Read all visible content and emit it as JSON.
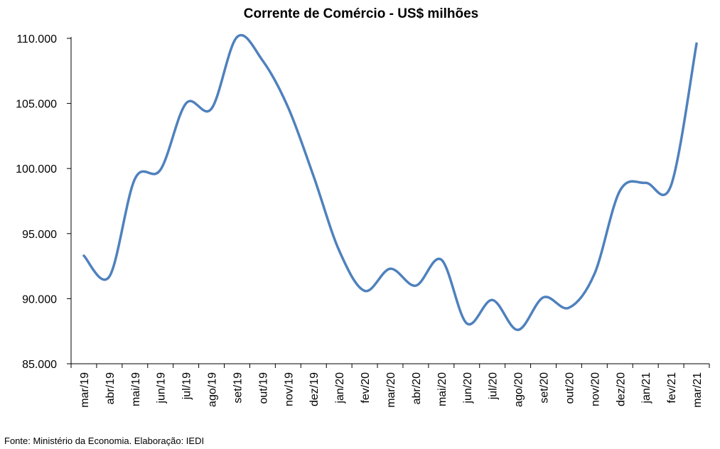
{
  "chart_data": {
    "type": "line",
    "title": "Corrente de Comércio - US$ milhões",
    "xlabel": "",
    "ylabel": "",
    "categories": [
      "mar/19",
      "abr/19",
      "mai/19",
      "jun/19",
      "jul/19",
      "ago/19",
      "set/19",
      "out/19",
      "nov/19",
      "dez/19",
      "jan/20",
      "fev/20",
      "mar/20",
      "abr/20",
      "mai/20",
      "jun/20",
      "jul/20",
      "ago/20",
      "set/20",
      "out/20",
      "nov/20",
      "dez/20",
      "jan/21",
      "fev/21",
      "mar/21"
    ],
    "series": [
      {
        "values": [
          93300,
          91700,
          99200,
          99900,
          105000,
          104600,
          110100,
          108300,
          104700,
          99400,
          93700,
          90600,
          92300,
          91000,
          93000,
          88100,
          89900,
          87600,
          90100,
          89300,
          91900,
          98300,
          98900,
          98700,
          109600
        ],
        "color": "#4F81BD"
      }
    ],
    "ylim": [
      85000,
      110000
    ],
    "yticks": [
      "85.000",
      "90.000",
      "95.000",
      "100.000",
      "105.000",
      "110.000"
    ],
    "ytick_values": [
      85000,
      90000,
      95000,
      100000,
      105000,
      110000
    ],
    "grid": false,
    "legend": "none",
    "source": "Fonte: Ministério da Economia. Elaboração: IEDI"
  }
}
